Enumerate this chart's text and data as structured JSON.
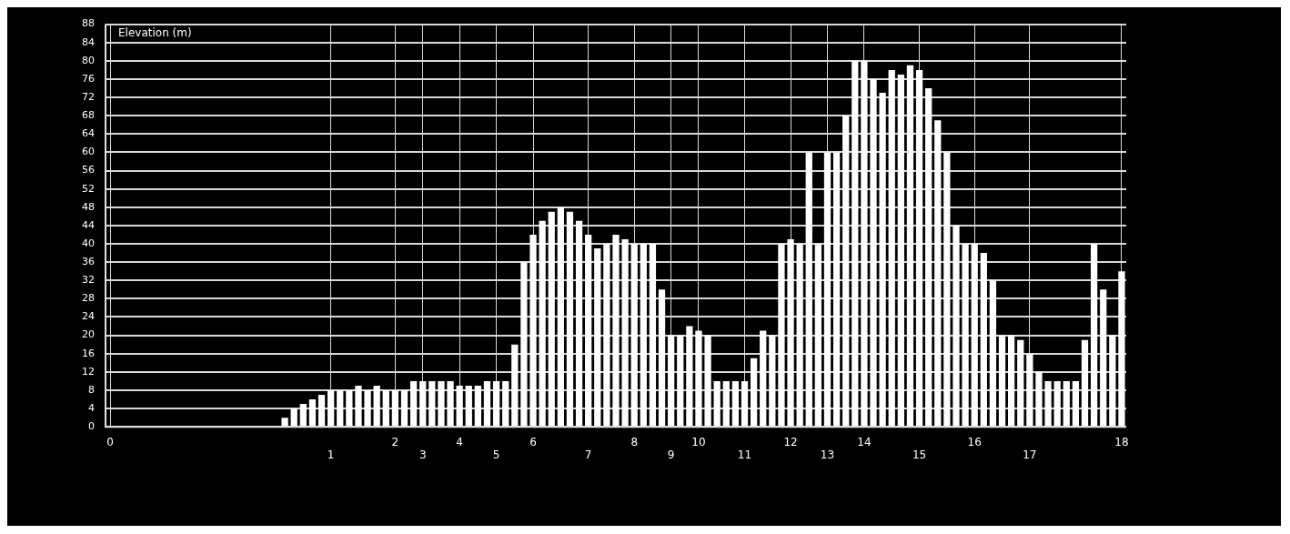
{
  "chart_data": {
    "type": "bar",
    "ylabel": "Elevation (m)",
    "categories": [
      "0",
      null,
      null,
      null,
      null,
      null,
      null,
      null,
      null,
      null,
      null,
      null,
      null,
      null,
      null,
      null,
      null,
      null,
      null,
      null,
      null,
      null,
      null,
      null,
      "1",
      null,
      null,
      null,
      null,
      null,
      null,
      "2",
      null,
      null,
      "3",
      null,
      null,
      null,
      "4",
      null,
      null,
      null,
      "5",
      null,
      null,
      null,
      "6",
      null,
      null,
      null,
      null,
      null,
      "7",
      null,
      null,
      null,
      null,
      "8",
      null,
      null,
      null,
      "9",
      null,
      null,
      "10",
      null,
      null,
      null,
      null,
      "11",
      null,
      null,
      null,
      null,
      "12",
      null,
      null,
      null,
      "13",
      null,
      null,
      null,
      "14",
      null,
      null,
      null,
      null,
      null,
      "15",
      null,
      null,
      null,
      null,
      null,
      "16",
      null,
      null,
      null,
      null,
      null,
      "17",
      null,
      null,
      null,
      null,
      null,
      null,
      null,
      null,
      null,
      "18"
    ],
    "values": [
      0,
      0,
      0,
      0,
      0,
      0,
      0,
      0,
      0,
      0,
      0,
      0,
      0,
      0,
      0,
      0,
      0,
      0,
      0,
      2,
      4,
      5,
      6,
      7,
      8,
      8,
      8,
      9,
      8,
      9,
      8,
      8,
      8,
      10,
      10,
      10,
      10,
      10,
      9,
      9,
      9,
      10,
      10,
      10,
      18,
      36,
      42,
      45,
      47,
      48,
      47,
      45,
      42,
      39,
      40,
      42,
      41,
      40,
      40,
      40,
      30,
      20,
      20,
      22,
      21,
      20,
      10,
      10,
      10,
      10,
      15,
      21,
      20,
      40,
      41,
      40,
      60,
      40,
      60,
      60,
      68,
      80,
      80,
      76,
      73,
      78,
      77,
      79,
      78,
      74,
      67,
      60,
      44,
      40,
      40,
      38,
      32,
      20,
      20,
      19,
      16,
      12,
      10,
      10,
      10,
      10,
      19,
      40,
      30,
      20,
      34
    ],
    "color": "#ffffff",
    "ylim": [
      0,
      88
    ],
    "yticks": [
      0,
      4,
      8,
      12,
      16,
      20,
      24,
      28,
      32,
      36,
      40,
      44,
      48,
      52,
      56,
      60,
      64,
      68,
      72,
      76,
      80,
      84,
      88
    ],
    "grid": true,
    "legend": false
  }
}
